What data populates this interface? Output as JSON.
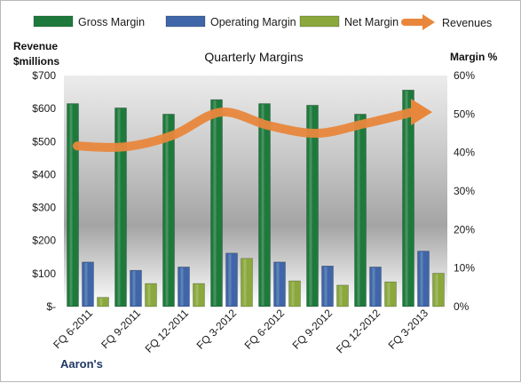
{
  "chart_data": {
    "type": "bar",
    "title": "Quarterly Margins",
    "categories": [
      "FQ 6-2011",
      "FQ 9-2011",
      "FQ 12-2011",
      "FQ 3-2012",
      "FQ 6-2012",
      "FQ 9-2012",
      "FQ 12-2012",
      "FQ 3-2013"
    ],
    "series": [
      {
        "name": "Gross Margin",
        "axis": "left",
        "unit": "$ millions",
        "color": "#1e7a3c",
        "values": [
          615,
          602,
          583,
          627,
          615,
          610,
          583,
          656
        ]
      },
      {
        "name": "Operating Margin",
        "axis": "left",
        "unit": "$ millions",
        "color": "#3e66a8",
        "values": [
          135,
          110,
          120,
          162,
          135,
          123,
          120,
          168
        ]
      },
      {
        "name": "Net Margin",
        "axis": "left",
        "unit": "$ millions",
        "color": "#8aa83c",
        "values": [
          28,
          70,
          70,
          146,
          78,
          65,
          75,
          101
        ]
      },
      {
        "name": "Revenues",
        "axis": "right",
        "type": "line",
        "unit": "%",
        "color": "#e8873c",
        "values": [
          41.7,
          41.5,
          44.5,
          50.5,
          47.0,
          45.0,
          47.5,
          50.5
        ]
      }
    ],
    "left_axis": {
      "label": "Revenue\n$millions",
      "min": 0,
      "max": 700,
      "step": 100,
      "tick_labels": [
        "$-",
        "$100",
        "$200",
        "$300",
        "$400",
        "$500",
        "$600",
        "$700"
      ]
    },
    "right_axis": {
      "label": "Margin %",
      "min": 0,
      "max": 60,
      "step": 10,
      "tick_labels": [
        "0%",
        "10%",
        "20%",
        "30%",
        "40%",
        "50%",
        "60%"
      ]
    },
    "legend": {
      "position": "top",
      "entries": [
        "Gross Margin",
        "Operating Margin",
        "Net Margin",
        "Revenues"
      ]
    },
    "grid": false,
    "source": "Aaron's"
  }
}
